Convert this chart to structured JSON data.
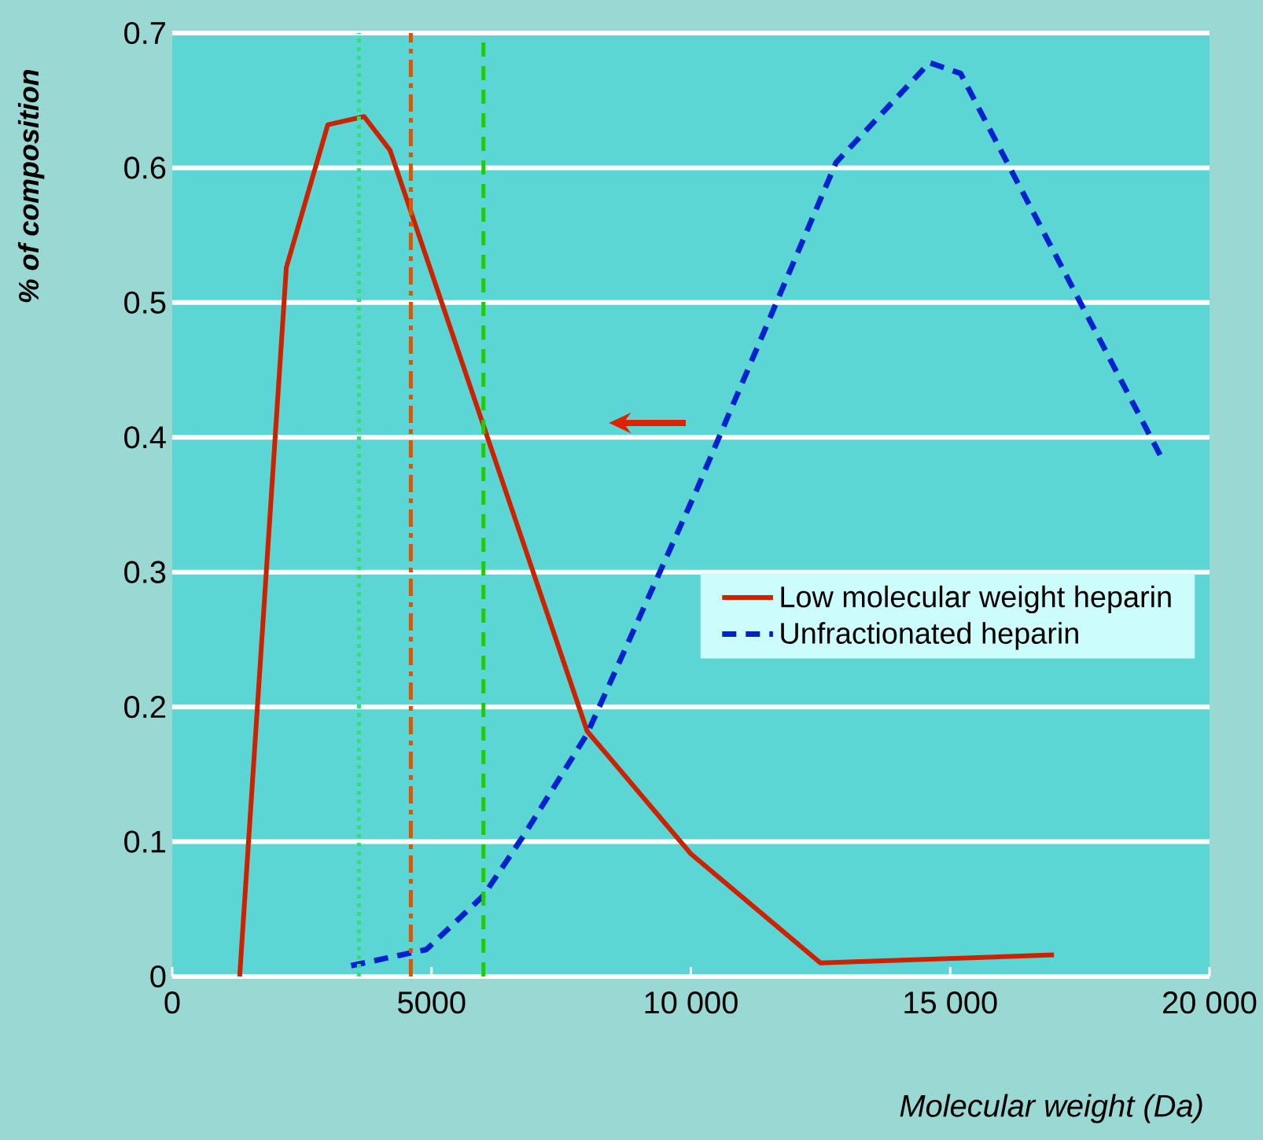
{
  "chart_data": {
    "type": "line",
    "xlabel": "Molecular weight (Da)",
    "ylabel": "% of composition",
    "xlim": [
      0,
      20000
    ],
    "ylim": [
      0,
      0.7
    ],
    "xticks": [
      0,
      5000,
      {
        "value": 10000,
        "label": "10 000"
      },
      {
        "value": 15000,
        "label": "15 000"
      },
      {
        "value": 20000,
        "label": "20 000"
      }
    ],
    "yticks": [
      0,
      0.1,
      0.2,
      0.3,
      0.4,
      0.5,
      0.6,
      0.7
    ],
    "grid": "y",
    "legend": "right",
    "marker": "none",
    "series": [
      {
        "name": "Low molecular weight heparin",
        "color": "#cc2200",
        "line_style": "solid",
        "x": [
          1300,
          2200,
          3000,
          3700,
          4200,
          8000,
          10000,
          12500,
          17000
        ],
        "values": [
          0,
          0.526,
          0.632,
          0.638,
          0.613,
          0.182,
          0.091,
          0.01,
          0.016
        ]
      },
      {
        "name": "Unfractionated heparin",
        "color": "#0022cc",
        "line_style": "dashed",
        "x": [
          3450,
          4900,
          6000,
          6800,
          8000,
          10100,
          12800,
          14600,
          15200,
          19100
        ],
        "values": [
          0.008,
          0.02,
          0.06,
          0.106,
          0.18,
          0.36,
          0.604,
          0.678,
          0.67,
          0.383
        ]
      }
    ],
    "ref_lines": [
      {
        "axis": "x",
        "value": 3600,
        "color": "#33dd77",
        "line_style": "dotted"
      },
      {
        "axis": "x",
        "value": 4600,
        "color": "#dd5500",
        "line_style": "dashdot"
      },
      {
        "axis": "x",
        "value": 6000,
        "color": "#22cc00",
        "line_style": "dashed"
      }
    ]
  }
}
